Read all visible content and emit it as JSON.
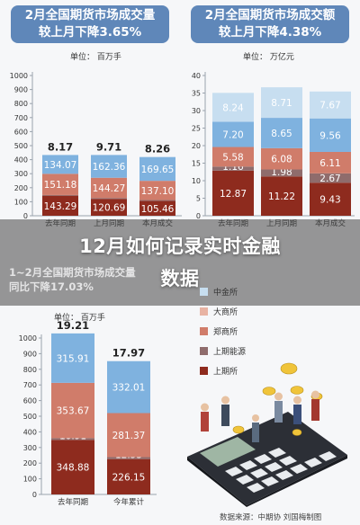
{
  "colors": {
    "dalian": "#8e2b1e",
    "zhengzhou": "#d07c6a",
    "shanghai": "#7fb2df",
    "dashang": "#e8b3a3",
    "jinrong": "#c7def0",
    "shanghai_energy": "#8f6c6c",
    "total_text": "#222222",
    "title_bg": "#5f87b9"
  },
  "banner": {
    "line1": "12月如何记录实时金融",
    "line2": "数据",
    "sub_panel_title": "1~2月全国期货市场成交量",
    "sub_panel_subtitle": "同比下降17.03%"
  },
  "legend": {
    "items": [
      {
        "label": "中金所",
        "color_key": "jinrong"
      },
      {
        "label": "大商所",
        "color_key": "dashang"
      },
      {
        "label": "郑商所",
        "color_key": "zhengzhou"
      },
      {
        "label": "上期能源",
        "color_key": "shanghai_energy"
      },
      {
        "label": "上期所",
        "color_key": "dalian"
      }
    ]
  },
  "source": "数据来源：中期协 刘国梅制图",
  "chart_data": [
    {
      "type": "bar",
      "title_line1": "2月全国期货市场成交量",
      "title_line2": "较上月下降3.65%",
      "unit": "单位：  百万手",
      "categories": [
        "去年同期",
        "上月同期",
        "本月成交"
      ],
      "ylim": [
        0,
        1000
      ],
      "yticks": [
        0,
        100,
        200,
        300,
        400,
        500,
        600,
        700,
        800,
        900,
        1000
      ],
      "totals": [
        "8.17",
        "9.71",
        "8.26"
      ],
      "series": [
        {
          "color_key": "dalian",
          "values": [
            143.29,
            120.69,
            105.46
          ],
          "labels": [
            "143.29",
            "120.69",
            "105.46"
          ]
        },
        {
          "color_key": "shanghai_energy",
          "values": [
            4.66,
            6.07,
            6.46
          ],
          "labels": [
            "4.66",
            "6.07",
            "6.46"
          ]
        },
        {
          "color_key": "zhengzhou",
          "values": [
            151.18,
            144.27,
            137.1
          ],
          "labels": [
            "151.18",
            "144.27",
            "137.10"
          ]
        },
        {
          "color_key": "shanghai",
          "values": [
            134.07,
            162.36,
            169.65
          ],
          "labels": [
            "134.07",
            "162.36",
            "169.65"
          ]
        }
      ]
    },
    {
      "type": "bar",
      "title_line1": "2月全国期货市场成交额",
      "title_line2": "较上月下降4.38%",
      "unit": "单位：  万亿元",
      "categories": [
        "去年同期",
        "上月同期",
        "本月成交"
      ],
      "ylim": [
        0,
        40
      ],
      "yticks": [
        0,
        5,
        10,
        15,
        20,
        25,
        30,
        35,
        40
      ],
      "totals": [],
      "series": [
        {
          "color_key": "dalian",
          "values": [
            12.87,
            11.22,
            9.43
          ],
          "labels": [
            "12.87",
            "11.22",
            "9.43"
          ]
        },
        {
          "color_key": "shanghai_energy",
          "values": [
            1.16,
            1.98,
            2.67
          ],
          "labels": [
            "1.16",
            "1.98",
            "2.67"
          ]
        },
        {
          "color_key": "zhengzhou",
          "values": [
            5.58,
            6.08,
            6.11
          ],
          "labels": [
            "5.58",
            "6.08",
            "6.11"
          ]
        },
        {
          "color_key": "shanghai",
          "values": [
            7.2,
            8.65,
            9.56
          ],
          "labels": [
            "7.20",
            "8.65",
            "9.56"
          ]
        },
        {
          "color_key": "jinrong",
          "values": [
            8.24,
            8.71,
            7.67
          ],
          "labels": [
            "8.24",
            "8.71",
            "7.67"
          ]
        }
      ]
    },
    {
      "type": "bar",
      "title_line1": "",
      "title_line2": "",
      "unit": "单位：  百万手",
      "categories": [
        "去年同期",
        "今年累计"
      ],
      "ylim": [
        0,
        1000
      ],
      "yticks": [
        0,
        100,
        200,
        300,
        400,
        500,
        600,
        700,
        800,
        900,
        1000
      ],
      "totals": [
        "19.21",
        "17.97"
      ],
      "series": [
        {
          "color_key": "dalian",
          "values": [
            348.88,
            226.15
          ],
          "labels": [
            "348.88",
            "226.15"
          ]
        },
        {
          "color_key": "shanghai_energy",
          "values": [
            10.91,
            12.53
          ],
          "labels": [
            "10.91",
            "12.53"
          ]
        },
        {
          "color_key": "zhengzhou",
          "values": [
            353.67,
            281.37
          ],
          "labels": [
            "353.67",
            "281.37"
          ]
        },
        {
          "color_key": "shanghai",
          "values": [
            315.91,
            332.01
          ],
          "labels": [
            "315.91",
            "332.01"
          ]
        }
      ]
    }
  ]
}
